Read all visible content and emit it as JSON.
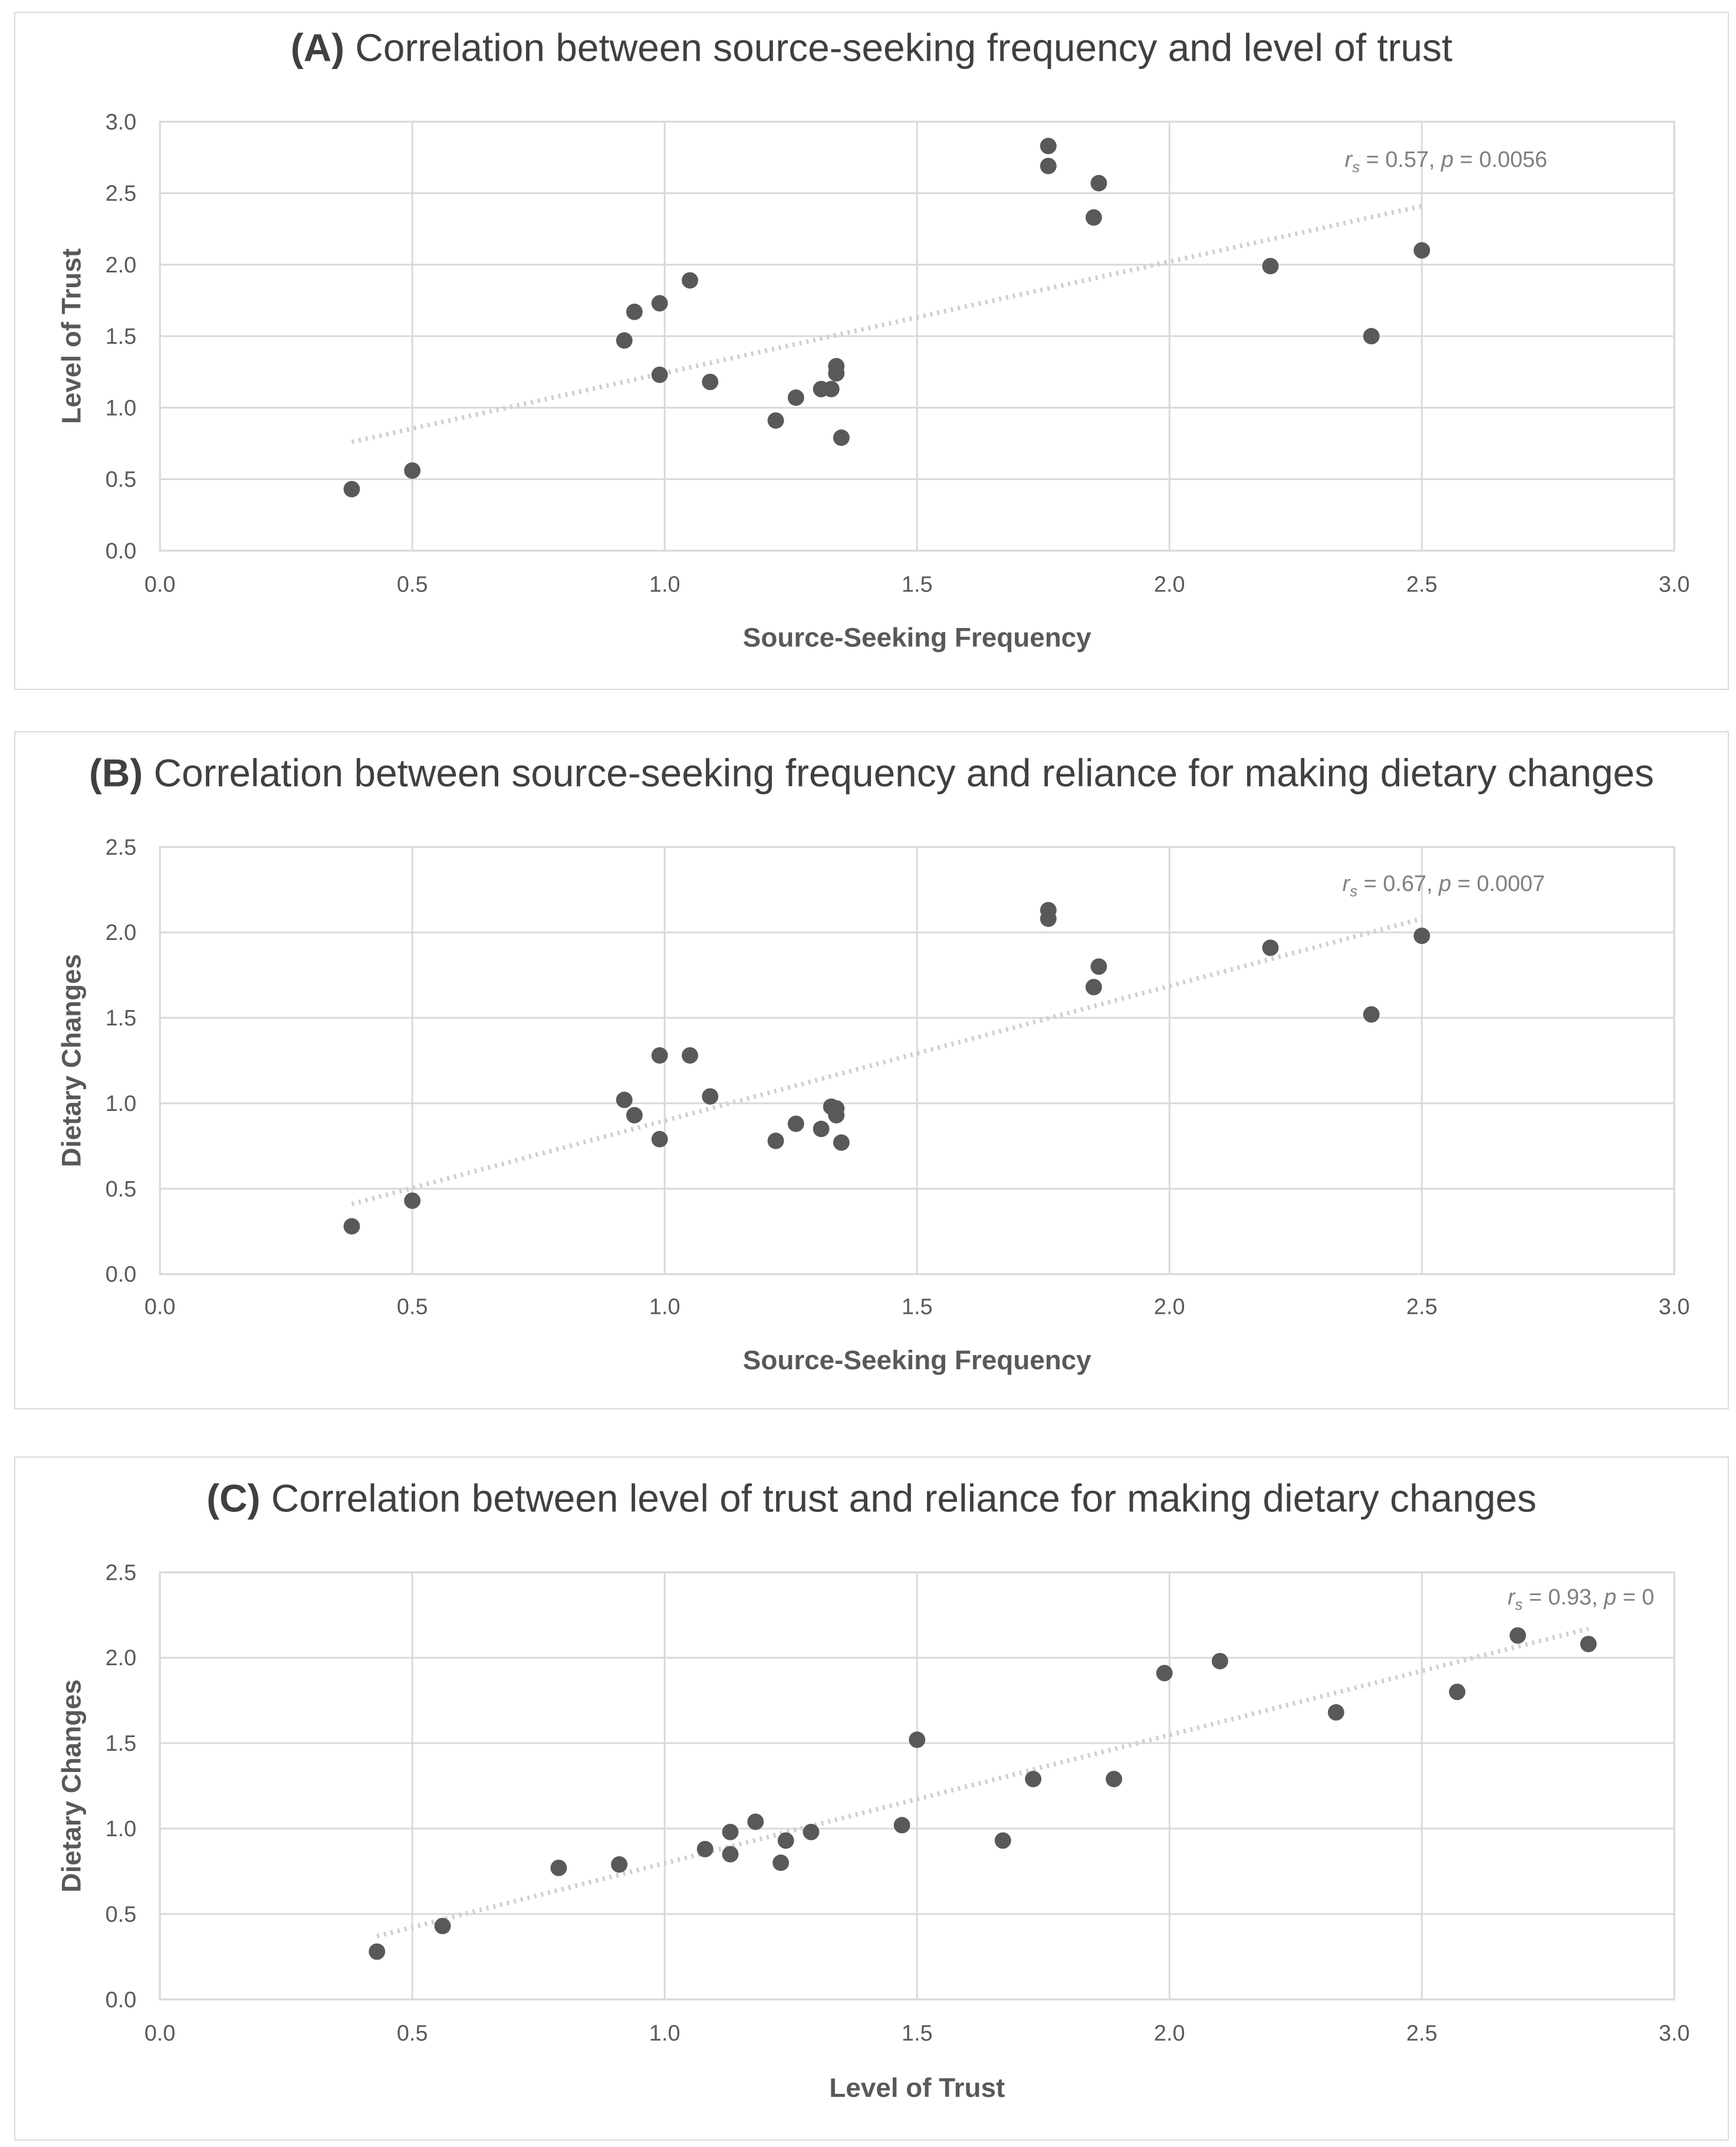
{
  "colors": {
    "marker": "#595959",
    "gridline": "#d9d9d9",
    "trendline": "#d0d0d0",
    "text": "#595959",
    "title": "#404040"
  },
  "chart_data": [
    {
      "type": "scatter",
      "letter": "(A)",
      "title": "Correlation between source-seeking frequency and level of trust",
      "xlabel": "Source-Seeking Frequency",
      "ylabel": "Level of Trust",
      "xlim": [
        0,
        3
      ],
      "ylim": [
        0,
        3
      ],
      "xticks": [
        "0.0",
        "0.5",
        "1.0",
        "1.5",
        "2.0",
        "2.5",
        "3.0"
      ],
      "yticks": [
        "0.0",
        "0.5",
        "1.0",
        "1.5",
        "2.0",
        "2.5",
        "3.0"
      ],
      "grid": true,
      "annotation": {
        "stat": "r",
        "sub": "s",
        "mid": " = 0.57, ",
        "pvar": "p",
        "tail": " = 0.0056"
      },
      "trendline": {
        "x": [
          0.38,
          2.5
        ],
        "y": [
          0.76,
          2.41
        ]
      },
      "points": [
        [
          0.38,
          0.43
        ],
        [
          0.5,
          0.56
        ],
        [
          0.92,
          1.47
        ],
        [
          0.94,
          1.67
        ],
        [
          0.99,
          1.73
        ],
        [
          0.99,
          1.23
        ],
        [
          1.05,
          1.89
        ],
        [
          1.09,
          1.18
        ],
        [
          1.22,
          0.91
        ],
        [
          1.26,
          1.07
        ],
        [
          1.31,
          1.13
        ],
        [
          1.33,
          1.13
        ],
        [
          1.34,
          1.24
        ],
        [
          1.34,
          1.29
        ],
        [
          1.35,
          0.79
        ],
        [
          1.76,
          2.83
        ],
        [
          1.76,
          2.69
        ],
        [
          1.85,
          2.33
        ],
        [
          1.86,
          2.57
        ],
        [
          2.2,
          1.99
        ],
        [
          2.4,
          1.5
        ],
        [
          2.5,
          2.1
        ]
      ]
    },
    {
      "type": "scatter",
      "letter": "(B)",
      "title": "Correlation between source-seeking frequency and reliance for making dietary changes",
      "xlabel": "Source-Seeking Frequency",
      "ylabel": "Dietary Changes",
      "xlim": [
        0,
        3
      ],
      "ylim": [
        0,
        2.5
      ],
      "xticks": [
        "0.0",
        "0.5",
        "1.0",
        "1.5",
        "2.0",
        "2.5",
        "3.0"
      ],
      "yticks": [
        "0.0",
        "0.5",
        "1.0",
        "1.5",
        "2.0",
        "2.5"
      ],
      "grid": true,
      "annotation": {
        "stat": "r",
        "sub": "s",
        "mid": " = 0.67, ",
        "pvar": "p",
        "tail": " = 0.0007"
      },
      "trendline": {
        "x": [
          0.38,
          2.5
        ],
        "y": [
          0.41,
          2.08
        ]
      },
      "points": [
        [
          0.38,
          0.28
        ],
        [
          0.5,
          0.43
        ],
        [
          0.92,
          1.02
        ],
        [
          0.94,
          0.93
        ],
        [
          0.99,
          1.28
        ],
        [
          0.99,
          0.79
        ],
        [
          1.05,
          1.28
        ],
        [
          1.09,
          1.04
        ],
        [
          1.22,
          0.78
        ],
        [
          1.26,
          0.88
        ],
        [
          1.31,
          0.85
        ],
        [
          1.33,
          0.98
        ],
        [
          1.34,
          0.97
        ],
        [
          1.34,
          0.93
        ],
        [
          1.35,
          0.77
        ],
        [
          1.76,
          2.13
        ],
        [
          1.76,
          2.08
        ],
        [
          1.85,
          1.68
        ],
        [
          1.86,
          1.8
        ],
        [
          2.2,
          1.91
        ],
        [
          2.4,
          1.52
        ],
        [
          2.5,
          1.98
        ]
      ]
    },
    {
      "type": "scatter",
      "letter": "(C)",
      "title": "Correlation between level of trust and reliance for making dietary changes",
      "xlabel": "Level of Trust",
      "ylabel": "Dietary Changes",
      "xlim": [
        0,
        3
      ],
      "ylim": [
        0,
        2.5
      ],
      "xticks": [
        "0.0",
        "0.5",
        "1.0",
        "1.5",
        "2.0",
        "2.5",
        "3.0"
      ],
      "yticks": [
        "0.0",
        "0.5",
        "1.0",
        "1.5",
        "2.0",
        "2.5"
      ],
      "grid": true,
      "annotation": {
        "stat": "r",
        "sub": "s",
        "mid": " = 0.93, ",
        "pvar": "p",
        "tail": " = 0"
      },
      "trendline": {
        "x": [
          0.43,
          2.83
        ],
        "y": [
          0.37,
          2.17
        ]
      },
      "points": [
        [
          0.43,
          0.28
        ],
        [
          0.56,
          0.43
        ],
        [
          0.79,
          0.77
        ],
        [
          0.91,
          0.79
        ],
        [
          1.08,
          0.88
        ],
        [
          1.13,
          0.85
        ],
        [
          1.13,
          0.98
        ],
        [
          1.18,
          1.04
        ],
        [
          1.23,
          0.8
        ],
        [
          1.24,
          0.93
        ],
        [
          1.29,
          0.98
        ],
        [
          1.47,
          1.02
        ],
        [
          1.5,
          1.52
        ],
        [
          1.67,
          0.93
        ],
        [
          1.73,
          1.29
        ],
        [
          1.89,
          1.29
        ],
        [
          1.99,
          1.91
        ],
        [
          2.1,
          1.98
        ],
        [
          2.33,
          1.68
        ],
        [
          2.57,
          1.8
        ],
        [
          2.69,
          2.13
        ],
        [
          2.83,
          2.08
        ]
      ]
    }
  ]
}
